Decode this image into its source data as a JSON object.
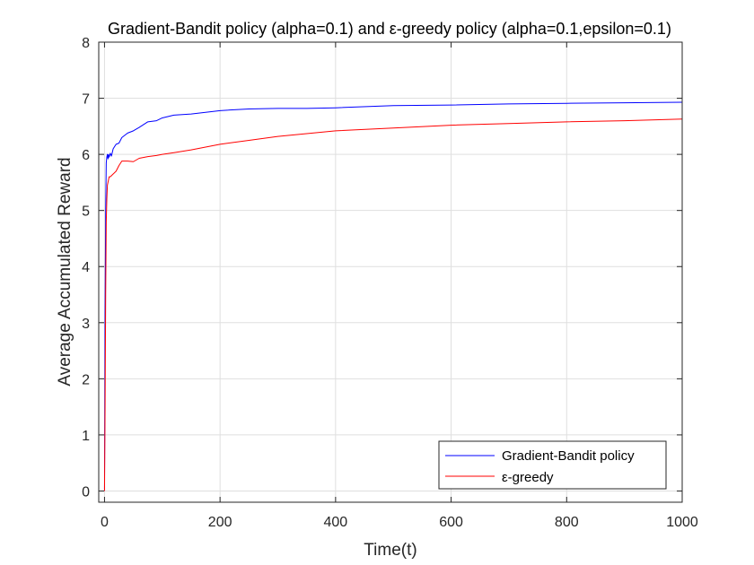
{
  "chart_data": {
    "type": "line",
    "title": "Gradient-Bandit policy (alpha=0.1) and ε-greedy policy (alpha=0.1,epsilon=0.1)",
    "xlabel": "Time(t)",
    "ylabel": "Average Accumulated Reward",
    "xlim": [
      -10,
      1000
    ],
    "ylim": [
      -0.2,
      8
    ],
    "x_ticks": [
      0,
      200,
      400,
      600,
      800,
      1000
    ],
    "y_ticks": [
      0,
      1,
      2,
      3,
      4,
      5,
      6,
      7,
      8
    ],
    "x_tick_labels": [
      "0",
      "200",
      "400",
      "600",
      "800",
      "1000"
    ],
    "y_tick_labels": [
      "0",
      "1",
      "2",
      "3",
      "4",
      "5",
      "6",
      "7",
      "8"
    ],
    "grid": true,
    "legend_position": "bottom-right",
    "series": [
      {
        "name": "Gradient-Bandit policy",
        "color": "#0000ff",
        "x": [
          0,
          1,
          2,
          3,
          4,
          5,
          6,
          7,
          8,
          10,
          12,
          15,
          20,
          25,
          30,
          40,
          50,
          60,
          75,
          90,
          100,
          120,
          150,
          200,
          250,
          300,
          350,
          400,
          500,
          600,
          700,
          800,
          900,
          1000
        ],
        "y": [
          0,
          3.2,
          5.0,
          5.85,
          5.95,
          6.0,
          5.92,
          6.0,
          5.95,
          6.02,
          5.97,
          6.1,
          6.18,
          6.2,
          6.3,
          6.38,
          6.42,
          6.48,
          6.58,
          6.6,
          6.65,
          6.7,
          6.72,
          6.78,
          6.81,
          6.82,
          6.82,
          6.83,
          6.87,
          6.88,
          6.9,
          6.91,
          6.92,
          6.93
        ]
      },
      {
        "name": "ε-greedy",
        "color": "#ff0000",
        "x": [
          0,
          1,
          2,
          3,
          4,
          5,
          6,
          7,
          8,
          10,
          12,
          15,
          20,
          25,
          30,
          40,
          50,
          60,
          75,
          90,
          100,
          120,
          150,
          200,
          250,
          300,
          350,
          400,
          500,
          600,
          700,
          800,
          900,
          1000
        ],
        "y": [
          0,
          1.5,
          3.5,
          4.8,
          5.2,
          5.45,
          5.5,
          5.55,
          5.6,
          5.6,
          5.62,
          5.65,
          5.7,
          5.8,
          5.88,
          5.88,
          5.87,
          5.93,
          5.96,
          5.98,
          6.0,
          6.03,
          6.08,
          6.18,
          6.25,
          6.32,
          6.37,
          6.42,
          6.47,
          6.52,
          6.55,
          6.58,
          6.6,
          6.63
        ]
      }
    ]
  }
}
